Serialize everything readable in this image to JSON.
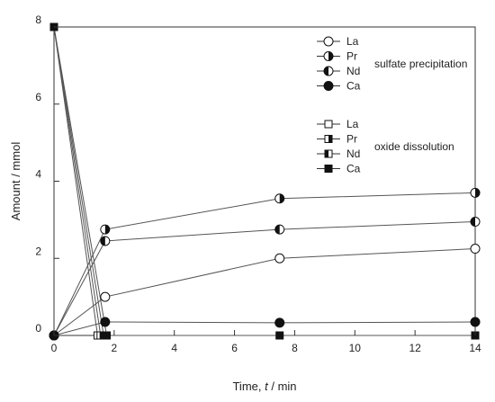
{
  "chart_data": {
    "type": "line",
    "xlabel_parts": [
      "Time, ",
      "t",
      " / min"
    ],
    "ylabel": "Amount / mmol",
    "xlim": [
      0,
      14
    ],
    "ylim": [
      0,
      8
    ],
    "x_ticks": [
      0,
      2,
      4,
      6,
      8,
      10,
      12,
      14
    ],
    "y_ticks": [
      0,
      2,
      4,
      6,
      8
    ],
    "groups": [
      {
        "label": "sulfate precipitation",
        "series": [
          {
            "name": "La",
            "marker": "circle",
            "fill": "none",
            "x": [
              0,
              1.7,
              7.5,
              14
            ],
            "y": [
              0,
              1.0,
              2.0,
              2.25
            ]
          },
          {
            "name": "Pr",
            "marker": "circle",
            "fill": "right",
            "x": [
              0,
              1.7,
              7.5,
              14
            ],
            "y": [
              0,
              2.75,
              3.55,
              3.7
            ]
          },
          {
            "name": "Nd",
            "marker": "circle",
            "fill": "left",
            "x": [
              0,
              1.7,
              7.5,
              14
            ],
            "y": [
              0,
              2.45,
              2.75,
              2.95
            ]
          },
          {
            "name": "Ca",
            "marker": "circle",
            "fill": "full",
            "x": [
              0,
              1.7,
              7.5,
              14
            ],
            "y": [
              0,
              0.35,
              0.33,
              0.35
            ]
          }
        ]
      },
      {
        "label": "oxide dissolution",
        "series": [
          {
            "name": "La",
            "marker": "square",
            "fill": "none",
            "x": [
              0,
              1.45
            ],
            "y": [
              8,
              0
            ]
          },
          {
            "name": "Pr",
            "marker": "square",
            "fill": "right",
            "x": [
              0,
              1.55
            ],
            "y": [
              8,
              0
            ]
          },
          {
            "name": "Nd",
            "marker": "square",
            "fill": "left",
            "x": [
              0,
              1.65
            ],
            "y": [
              8,
              0
            ]
          },
          {
            "name": "Ca",
            "marker": "square",
            "fill": "full",
            "x": [
              0,
              1.75,
              7.5,
              14
            ],
            "y": [
              8,
              0,
              0,
              0
            ]
          }
        ]
      }
    ]
  }
}
